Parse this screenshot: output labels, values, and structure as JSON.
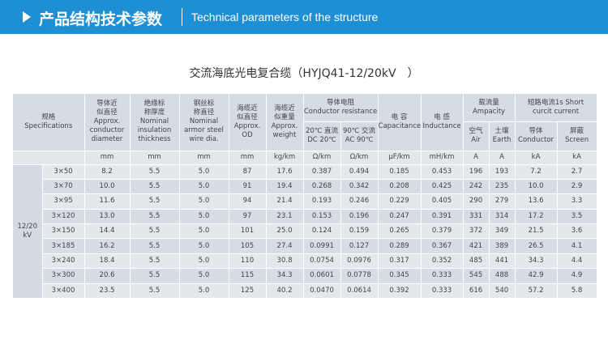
{
  "header": {
    "title_zh": "产品结构技术参数",
    "title_en": "Technical parameters of the structure"
  },
  "table_title": "交流海底光电复合缆（HYJQ41-12/20kV　）",
  "columns": {
    "spec": [
      "规格",
      "Specifications"
    ],
    "conductor_dia": [
      "导体近",
      "似直径",
      "Approx.",
      "conductor",
      "diameter"
    ],
    "insulation": [
      "绝缘标",
      "称厚度",
      "Nominal",
      "insulation",
      "thickness"
    ],
    "armor": [
      "钢丝标",
      "称直径",
      "Nominal",
      "armor steel",
      "wire dia."
    ],
    "od": [
      "海缆近",
      "似直径",
      "Approx.",
      "OD"
    ],
    "weight": [
      "海缆近",
      "似重量",
      "Approx.",
      "weight"
    ],
    "resistance": [
      "导体电阻",
      "Conductor resistance"
    ],
    "res_dc": [
      "20℃ 直流",
      "DC 20℃"
    ],
    "res_ac": [
      "90℃ 交流",
      "AC 90℃"
    ],
    "capacitance": [
      "电 容",
      "Capacitance"
    ],
    "inductance": [
      "电 感",
      "Inductance"
    ],
    "ampacity": [
      "载流量",
      "Ampacity"
    ],
    "amp_air": [
      "空气",
      "Air"
    ],
    "amp_earth": [
      "土壤",
      "Earth"
    ],
    "short_circuit": [
      "短路电流1s Short",
      "curcit current"
    ],
    "sc_conductor": [
      "导体",
      "Conductor"
    ],
    "sc_screen": [
      "屏蔽",
      "Screen"
    ]
  },
  "units": [
    "mm",
    "mm",
    "mm",
    "mm",
    "kg/km",
    "Ω/km",
    "Ω/km",
    "μF/km",
    "mH/km",
    "A",
    "A",
    "kA",
    "kA"
  ],
  "voltage_group": [
    "12/20",
    "kV"
  ],
  "rows": [
    [
      "3×50",
      "8.2",
      "5.5",
      "5.0",
      "87",
      "17.6",
      "0.387",
      "0.494",
      "0.185",
      "0.453",
      "196",
      "193",
      "7.2",
      "2.7"
    ],
    [
      "3×70",
      "10.0",
      "5.5",
      "5.0",
      "91",
      "19.4",
      "0.268",
      "0.342",
      "0.208",
      "0.425",
      "242",
      "235",
      "10.0",
      "2.9"
    ],
    [
      "3×95",
      "11.6",
      "5.5",
      "5.0",
      "94",
      "21.4",
      "0.193",
      "0.246",
      "0.229",
      "0.405",
      "290",
      "279",
      "13.6",
      "3.3"
    ],
    [
      "3×120",
      "13.0",
      "5.5",
      "5.0",
      "97",
      "23.1",
      "0.153",
      "0.196",
      "0.247",
      "0.391",
      "331",
      "314",
      "17.2",
      "3.5"
    ],
    [
      "3×150",
      "14.4",
      "5.5",
      "5.0",
      "101",
      "25.0",
      "0.124",
      "0.159",
      "0.265",
      "0.379",
      "372",
      "349",
      "21.5",
      "3.6"
    ],
    [
      "3×185",
      "16.2",
      "5.5",
      "5.0",
      "105",
      "27.4",
      "0.0991",
      "0.127",
      "0.289",
      "0.367",
      "421",
      "389",
      "26.5",
      "4.1"
    ],
    [
      "3×240",
      "18.4",
      "5.5",
      "5.0",
      "110",
      "30.8",
      "0.0754",
      "0.0976",
      "0.317",
      "0.352",
      "485",
      "441",
      "34.3",
      "4.4"
    ],
    [
      "3×300",
      "20.6",
      "5.5",
      "5.0",
      "115",
      "34.3",
      "0.0601",
      "0.0778",
      "0.345",
      "0.333",
      "545",
      "488",
      "42.9",
      "4.9"
    ],
    [
      "3×400",
      "23.5",
      "5.5",
      "5.0",
      "125",
      "40.2",
      "0.0470",
      "0.0614",
      "0.392",
      "0.333",
      "616",
      "540",
      "57.2",
      "5.8"
    ]
  ]
}
